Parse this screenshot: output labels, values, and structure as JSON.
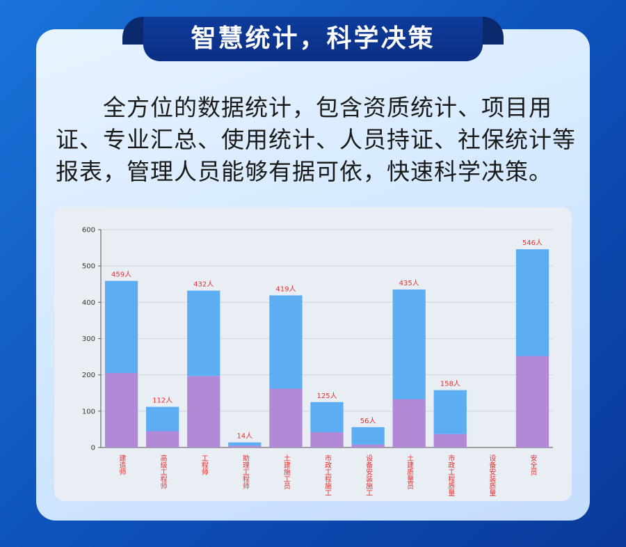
{
  "header": {
    "title": "智慧统计，科学决策"
  },
  "intro": "全方位的数据统计，包含资质统计、项目用证、专业汇总、使用统计、人员持证、社保统计等报表，管理人员能够有据可依，快速科学决策。",
  "chart_data": {
    "type": "stacked_bar",
    "categories": [
      "建造师",
      "高级工程师",
      "工程师",
      "助理工程师",
      "土建施工员",
      "市政工程施工",
      "设备安装施工",
      "土建质量员",
      "市政工程质量",
      "设备安装质量",
      "安全员"
    ],
    "series": [
      {
        "color": "#b189d6",
        "values": [
          205,
          45,
          197,
          5,
          162,
          42,
          8,
          133,
          37,
          0,
          252
        ]
      },
      {
        "color": "#5cadf2",
        "values": [
          254,
          67,
          235,
          9,
          257,
          83,
          48,
          302,
          121,
          0,
          294
        ]
      }
    ],
    "totals": [
      459,
      112,
      432,
      14,
      419,
      125,
      56,
      435,
      158,
      null,
      546
    ],
    "total_labels": [
      "459人",
      "112人",
      "432人",
      "14人",
      "419人",
      "125人",
      "56人",
      "435人",
      "158人",
      null,
      "546人"
    ],
    "ylim": [
      0,
      600
    ],
    "yticks": [
      0,
      100,
      200,
      300,
      400,
      500,
      600
    ],
    "grid": true,
    "label_color": "#e8302c"
  }
}
